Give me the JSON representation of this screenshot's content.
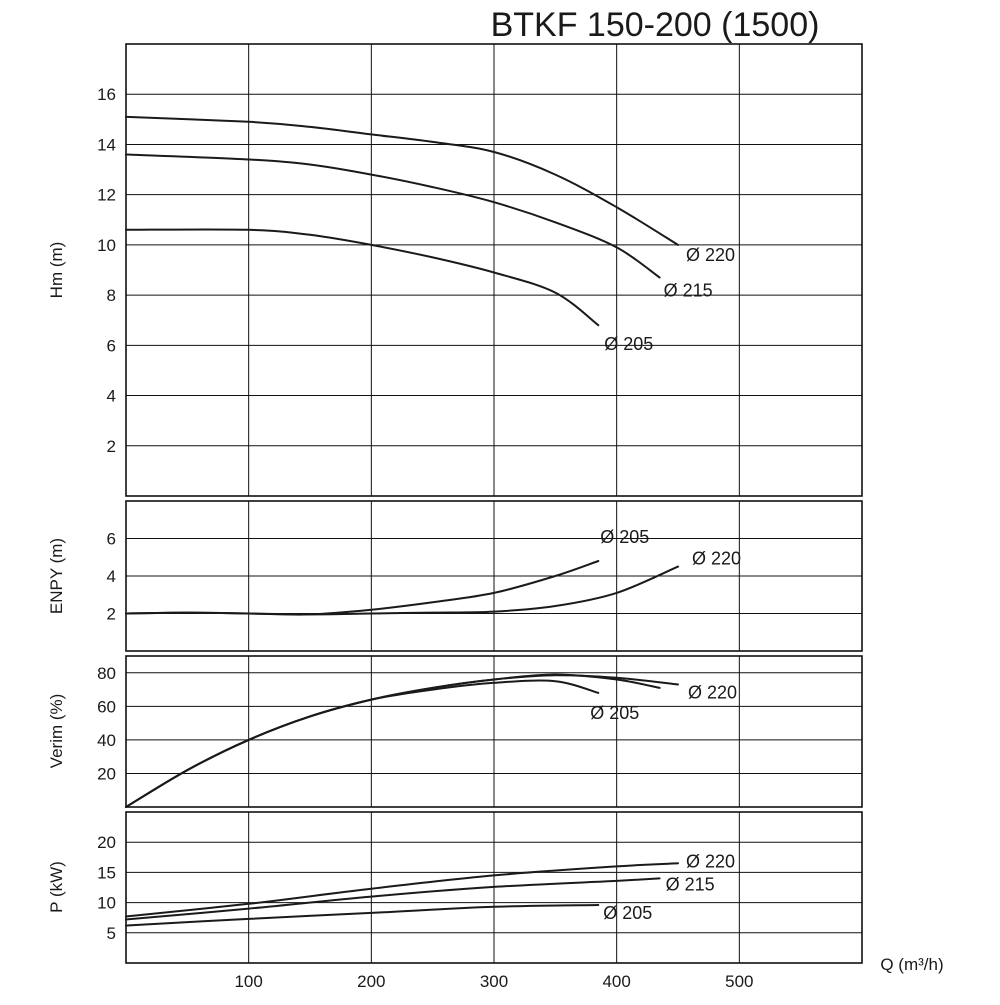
{
  "chart_data": {
    "title": "BTKF 150-200 (1500)",
    "xlabel": "Q (m³/h)",
    "x_ticks": [
      "100",
      "200",
      "300",
      "400",
      "500"
    ],
    "xlim": [
      0,
      600
    ],
    "grid": true,
    "panels": [
      {
        "id": "head",
        "type": "line",
        "ylabel": "Hm (m)",
        "ylim": [
          0,
          18
        ],
        "y_ticks": [
          "2",
          "4",
          "6",
          "8",
          "10",
          "12",
          "14",
          "16"
        ],
        "series": [
          {
            "name": "Ø 220",
            "x": [
              0,
              100,
              150,
              200,
              250,
              300,
              350,
              400,
              450
            ],
            "y": [
              15.1,
              14.9,
              14.7,
              14.4,
              14.1,
              13.7,
              12.8,
              11.5,
              10.0
            ]
          },
          {
            "name": "Ø 215",
            "x": [
              0,
              100,
              150,
              200,
              250,
              300,
              350,
              400,
              435
            ],
            "y": [
              13.6,
              13.4,
              13.2,
              12.8,
              12.3,
              11.7,
              10.9,
              9.9,
              8.7
            ]
          },
          {
            "name": "Ø 205",
            "x": [
              0,
              100,
              150,
              200,
              250,
              300,
              350,
              385
            ],
            "y": [
              10.6,
              10.6,
              10.4,
              10.0,
              9.5,
              8.9,
              8.1,
              6.8
            ]
          }
        ]
      },
      {
        "id": "npsh",
        "type": "line",
        "ylabel": "ENPY (m)",
        "ylim": [
          0,
          8
        ],
        "y_ticks": [
          "2",
          "4",
          "6"
        ],
        "series": [
          {
            "name": "Ø 205",
            "x": [
              0,
              50,
              100,
              150,
              200,
              250,
              300,
              350,
              385
            ],
            "y": [
              2.0,
              2.05,
              2.0,
              1.95,
              2.2,
              2.6,
              3.1,
              4.0,
              4.8
            ]
          },
          {
            "name": "Ø 220",
            "x": [
              0,
              50,
              100,
              150,
              200,
              250,
              300,
              350,
              400,
              450
            ],
            "y": [
              2.0,
              2.05,
              2.0,
              1.95,
              2.0,
              2.05,
              2.1,
              2.4,
              3.1,
              4.5
            ]
          }
        ]
      },
      {
        "id": "efficiency",
        "type": "line",
        "ylabel": "Verim (%)",
        "ylim": [
          0,
          90
        ],
        "y_ticks": [
          "20",
          "40",
          "60",
          "80"
        ],
        "series": [
          {
            "name": "Ø 220",
            "x": [
              0,
              50,
              100,
              150,
              200,
              250,
              300,
              350,
              400,
              450
            ],
            "y": [
              0,
              22,
              40,
              54,
              64,
              71,
              76,
              78.5,
              77,
              73
            ]
          },
          {
            "name": "Ø 215",
            "x": [
              0,
              50,
              100,
              150,
              200,
              250,
              300,
              350,
              400,
              435
            ],
            "y": [
              0,
              22,
              40,
              54,
              64,
              71,
              76,
              79,
              76,
              71
            ]
          },
          {
            "name": "Ø 205",
            "x": [
              0,
              50,
              100,
              150,
              200,
              250,
              300,
              350,
              385
            ],
            "y": [
              0,
              22,
              40,
              54,
              64,
              70,
              74,
              75,
              68
            ]
          }
        ]
      },
      {
        "id": "power",
        "type": "line",
        "ylabel": "P (kW)",
        "ylim": [
          0,
          25
        ],
        "y_ticks": [
          "5",
          "10",
          "15",
          "20"
        ],
        "series": [
          {
            "name": "Ø 220",
            "x": [
              0,
              100,
              200,
              300,
              400,
              450
            ],
            "y": [
              7.7,
              9.8,
              12.3,
              14.5,
              16.0,
              16.5
            ]
          },
          {
            "name": "Ø 215",
            "x": [
              0,
              100,
              200,
              300,
              400,
              435
            ],
            "y": [
              7.2,
              9.0,
              11.0,
              12.6,
              13.6,
              14.0
            ]
          },
          {
            "name": "Ø 205",
            "x": [
              0,
              100,
              200,
              300,
              385
            ],
            "y": [
              6.2,
              7.3,
              8.3,
              9.3,
              9.6
            ]
          }
        ]
      }
    ]
  },
  "curve_labels": {
    "head": [
      "Ø 220",
      "Ø 215",
      "Ø 205"
    ],
    "npsh": [
      "Ø 205",
      "Ø 220"
    ],
    "efficiency": [
      "Ø 205",
      "Ø 220"
    ],
    "power": [
      "Ø 220",
      "Ø 215",
      "Ø 205"
    ]
  }
}
